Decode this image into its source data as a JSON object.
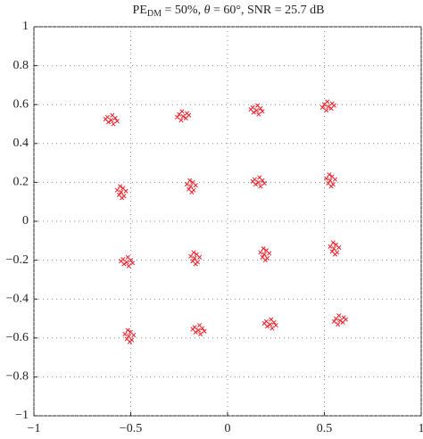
{
  "chart_data": {
    "type": "scatter",
    "title": [
      "PE",
      "DM",
      " = 50%, ",
      "θ",
      " = 60°, SNR = 25.7 dB"
    ],
    "color": "#e8202a",
    "grid": true,
    "xlim": [
      -1,
      1
    ],
    "ylim": [
      -1,
      1
    ],
    "xticks": [
      {
        "value": -1,
        "label": "−1"
      },
      {
        "value": -0.5,
        "label": "−0.5"
      },
      0,
      0.5,
      1
    ],
    "yticks": [
      {
        "value": -1,
        "label": "−1"
      },
      {
        "value": -0.8,
        "label": "−0.8"
      },
      {
        "value": -0.6,
        "label": "−0.6"
      },
      {
        "value": -0.4,
        "label": "−0.4"
      },
      {
        "value": -0.2,
        "label": "−0.2"
      },
      0,
      0.2,
      0.4,
      0.6,
      0.8,
      1
    ],
    "x": [
      -0.6,
      -0.58,
      -0.62,
      -0.59,
      -0.615,
      -0.57,
      -0.63,
      -0.595,
      -0.23,
      -0.25,
      -0.21,
      -0.24,
      -0.215,
      -0.26,
      -0.2,
      -0.235,
      0.15,
      0.17,
      0.13,
      0.16,
      0.135,
      0.18,
      0.12,
      0.155,
      0.52,
      0.5,
      0.54,
      0.51,
      0.535,
      0.49,
      0.55,
      0.515,
      -0.55,
      -0.54,
      -0.535,
      -0.57,
      -0.56,
      -0.555,
      -0.545,
      -0.525,
      -0.19,
      -0.18,
      -0.175,
      -0.21,
      -0.2,
      -0.195,
      -0.185,
      -0.165,
      0.16,
      0.18,
      0.14,
      0.17,
      0.145,
      0.19,
      0.13,
      0.165,
      0.53,
      0.54,
      0.545,
      0.51,
      0.52,
      0.525,
      0.535,
      0.555,
      -0.52,
      -0.5,
      -0.54,
      -0.51,
      -0.535,
      -0.49,
      -0.55,
      -0.515,
      -0.17,
      -0.16,
      -0.155,
      -0.19,
      -0.18,
      -0.175,
      -0.165,
      -0.145,
      0.19,
      0.2,
      0.205,
      0.17,
      0.18,
      0.185,
      0.195,
      0.215,
      0.55,
      0.56,
      0.565,
      0.53,
      0.54,
      0.545,
      0.555,
      0.575,
      -0.51,
      -0.5,
      -0.495,
      -0.53,
      -0.52,
      -0.515,
      -0.505,
      -0.485,
      -0.15,
      -0.13,
      -0.17,
      -0.14,
      -0.165,
      -0.12,
      -0.18,
      -0.145,
      0.22,
      0.24,
      0.2,
      0.23,
      0.205,
      0.25,
      0.19,
      0.225,
      0.58,
      0.56,
      0.6,
      0.57,
      0.595,
      0.55,
      0.61,
      0.575
    ],
    "y": [
      0.52,
      0.53,
      0.535,
      0.5,
      0.51,
      0.515,
      0.525,
      0.545,
      0.54,
      0.55,
      0.555,
      0.52,
      0.53,
      0.535,
      0.545,
      0.565,
      0.57,
      0.58,
      0.585,
      0.55,
      0.56,
      0.565,
      0.575,
      0.595,
      0.59,
      0.6,
      0.605,
      0.57,
      0.58,
      0.585,
      0.595,
      0.615,
      0.15,
      0.17,
      0.13,
      0.16,
      0.135,
      0.18,
      0.12,
      0.155,
      0.18,
      0.2,
      0.16,
      0.19,
      0.165,
      0.21,
      0.15,
      0.185,
      0.2,
      0.21,
      0.215,
      0.18,
      0.19,
      0.195,
      0.205,
      0.225,
      0.21,
      0.23,
      0.19,
      0.22,
      0.195,
      0.24,
      0.18,
      0.215,
      -0.21,
      -0.2,
      -0.195,
      -0.23,
      -0.22,
      -0.215,
      -0.205,
      -0.185,
      -0.19,
      -0.17,
      -0.21,
      -0.18,
      -0.205,
      -0.16,
      -0.22,
      -0.185,
      -0.17,
      -0.15,
      -0.19,
      -0.16,
      -0.185,
      -0.14,
      -0.2,
      -0.165,
      -0.14,
      -0.12,
      -0.16,
      -0.13,
      -0.155,
      -0.11,
      -0.17,
      -0.135,
      -0.59,
      -0.57,
      -0.61,
      -0.58,
      -0.605,
      -0.56,
      -0.62,
      -0.585,
      -0.56,
      -0.55,
      -0.545,
      -0.58,
      -0.57,
      -0.565,
      -0.555,
      -0.535,
      -0.53,
      -0.52,
      -0.515,
      -0.55,
      -0.54,
      -0.535,
      -0.525,
      -0.505,
      -0.51,
      -0.5,
      -0.495,
      -0.53,
      -0.52,
      -0.515,
      -0.505,
      -0.485
    ]
  }
}
